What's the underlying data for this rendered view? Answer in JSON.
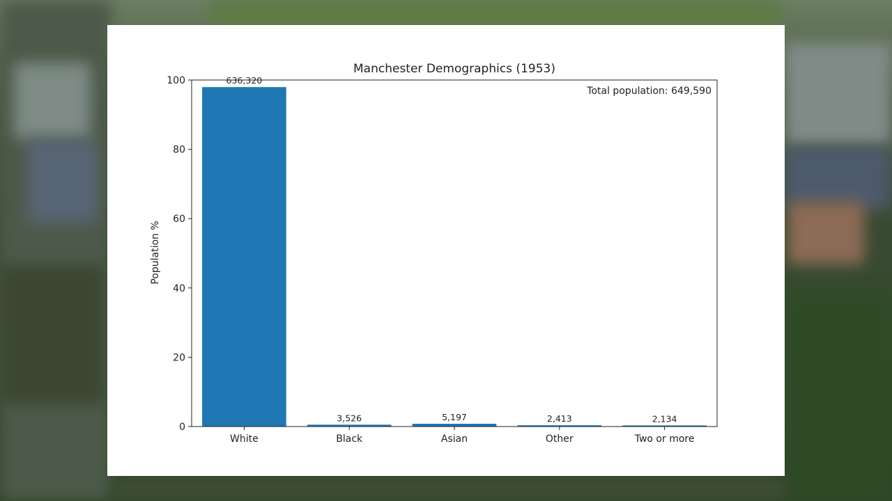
{
  "chart_data": {
    "type": "bar",
    "title": "Manchester Demographics (1953)",
    "xlabel": "",
    "ylabel": "Population %",
    "categories": [
      "White",
      "Black",
      "Asian",
      "Other",
      "Two or more"
    ],
    "counts": [
      636320,
      3526,
      5197,
      2413,
      2134
    ],
    "count_labels": [
      "636,320",
      "3,526",
      "5,197",
      "2,413",
      "2,134"
    ],
    "values": [
      97.96,
      0.54,
      0.8,
      0.37,
      0.33
    ],
    "ylim": [
      0,
      100
    ],
    "yticks": [
      0,
      20,
      40,
      60,
      80,
      100
    ],
    "annotation": "Total population: 649,590",
    "bar_color": "#1f77b4",
    "grid": false
  }
}
